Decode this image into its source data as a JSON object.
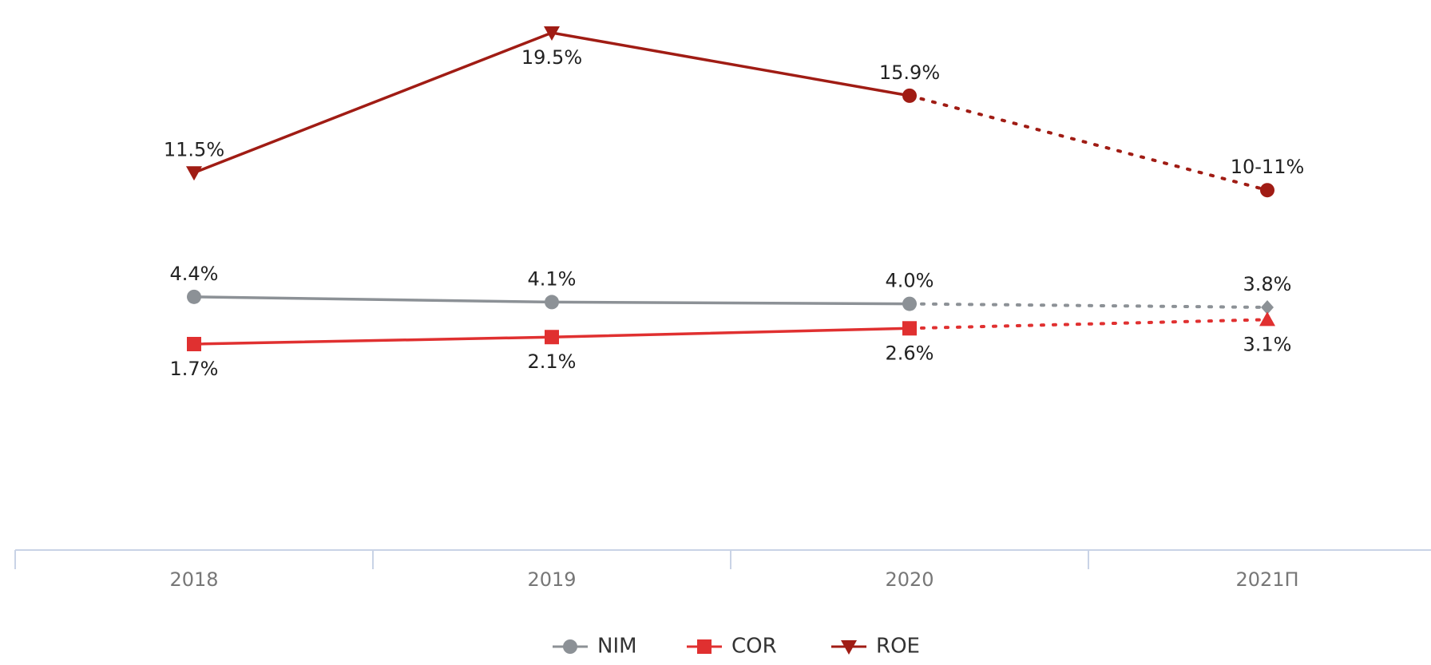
{
  "chart_data": {
    "type": "line",
    "categories": [
      "2018",
      "2019",
      "2020",
      "2021П"
    ],
    "series": [
      {
        "name": "NIM",
        "color": "#8c9196",
        "values": [
          4.4,
          4.1,
          4.0,
          3.8
        ],
        "value_labels": [
          "4.4%",
          "4.1%",
          "4.0%",
          "3.8%"
        ],
        "markers": [
          "circle",
          "circle",
          "circle",
          "diamond"
        ],
        "label_side": [
          "above",
          "above",
          "above",
          "above"
        ]
      },
      {
        "name": "COR",
        "color": "#e03030",
        "values": [
          1.7,
          2.1,
          2.6,
          3.1
        ],
        "value_labels": [
          "1.7%",
          "2.1%",
          "2.6%",
          "3.1%"
        ],
        "markers": [
          "square",
          "square",
          "square",
          "triangle-up"
        ],
        "label_side": [
          "below",
          "below",
          "below",
          "below"
        ]
      },
      {
        "name": "ROE",
        "color": "#a01c14",
        "values": [
          11.5,
          19.5,
          15.9,
          10.5
        ],
        "value_labels": [
          "11.5%",
          "19.5%",
          "15.9%",
          "10-11%"
        ],
        "markers": [
          "triangle-down",
          "triangle-down",
          "circle",
          "circle"
        ],
        "label_side": [
          "above",
          "below",
          "above",
          "above"
        ]
      }
    ],
    "dotted_from_index": 2,
    "legend": "bottom"
  }
}
